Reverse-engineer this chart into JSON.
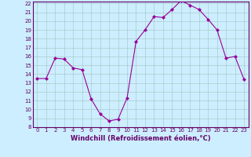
{
  "x": [
    0,
    1,
    2,
    3,
    4,
    5,
    6,
    7,
    8,
    9,
    10,
    11,
    12,
    13,
    14,
    15,
    16,
    17,
    18,
    19,
    20,
    21,
    22,
    23
  ],
  "y": [
    13.5,
    13.5,
    15.8,
    15.7,
    14.7,
    14.5,
    11.2,
    9.5,
    8.7,
    8.9,
    11.3,
    17.7,
    19.0,
    20.5,
    20.4,
    21.3,
    22.3,
    21.8,
    21.3,
    20.2,
    19.0,
    15.8,
    16.0,
    13.4
  ],
  "line_color": "#990099",
  "marker": "D",
  "marker_size": 2.0,
  "bg_color": "#cceeff",
  "grid_color": "#aacccc",
  "xlabel": "Windchill (Refroidissement éolien,°C)",
  "ylim": [
    8,
    22
  ],
  "xlim": [
    -0.5,
    23.5
  ],
  "yticks": [
    8,
    9,
    10,
    11,
    12,
    13,
    14,
    15,
    16,
    17,
    18,
    19,
    20,
    21,
    22
  ],
  "xticks": [
    0,
    1,
    2,
    3,
    4,
    5,
    6,
    7,
    8,
    9,
    10,
    11,
    12,
    13,
    14,
    15,
    16,
    17,
    18,
    19,
    20,
    21,
    22,
    23
  ],
  "tick_fontsize": 5.0,
  "xlabel_fontsize": 6.0,
  "axis_color": "#660066"
}
